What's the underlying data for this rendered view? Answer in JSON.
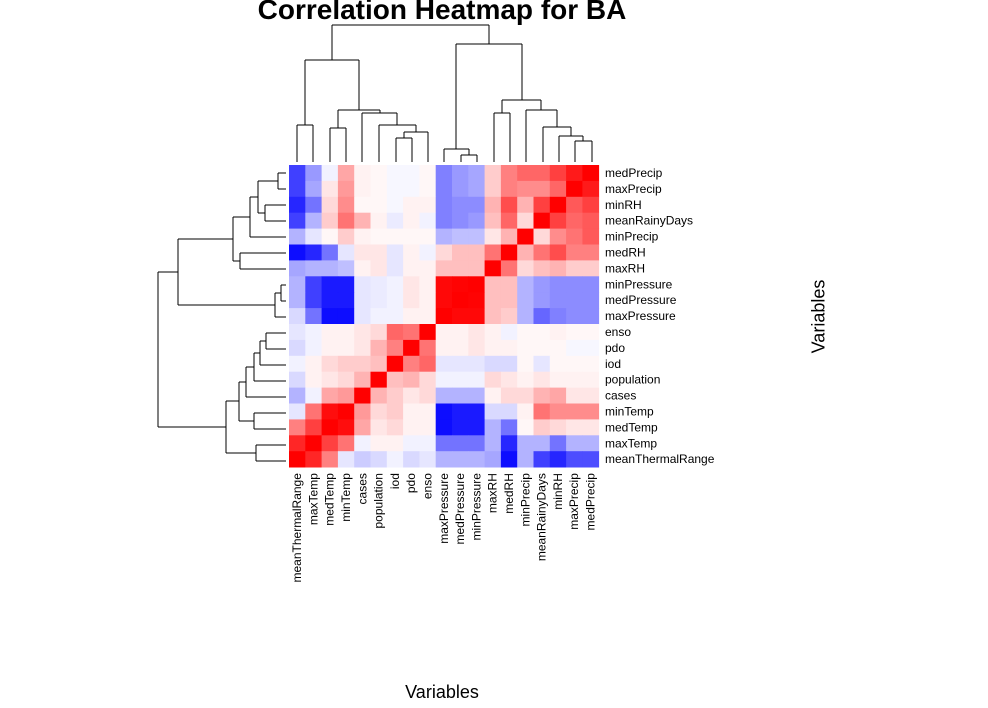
{
  "chart_data": {
    "type": "heatmap",
    "title": "Correlation Heatmap for BA",
    "xlabel": "Variables",
    "ylabel": "Variables",
    "column_labels": [
      "meanThermalRange",
      "maxTemp",
      "medTemp",
      "minTemp",
      "cases",
      "population",
      "iod",
      "pdo",
      "enso",
      "maxPressure",
      "medPressure",
      "minPressure",
      "maxRH",
      "medRH",
      "minPrecip",
      "meanRainyDays",
      "minRH",
      "maxPrecip",
      "medPrecip"
    ],
    "row_labels": [
      "medPrecip",
      "maxPrecip",
      "minRH",
      "meanRainyDays",
      "minPrecip",
      "medRH",
      "maxRH",
      "minPressure",
      "medPressure",
      "maxPressure",
      "enso",
      "pdo",
      "iod",
      "population",
      "cases",
      "minTemp",
      "medTemp",
      "maxTemp",
      "meanThermalRange"
    ],
    "color_scale": {
      "min": -1,
      "max": 1,
      "low_color": "#0000ff",
      "mid_color": "#ffffff",
      "high_color": "#ff0000"
    },
    "values": [
      [
        -0.75,
        -0.4,
        -0.05,
        0.35,
        0.05,
        0.03,
        -0.03,
        -0.03,
        0.03,
        -0.5,
        -0.4,
        -0.35,
        0.2,
        0.5,
        0.6,
        0.6,
        0.75,
        0.9,
        1
      ],
      [
        -0.75,
        -0.35,
        0.1,
        0.4,
        0.05,
        0.03,
        -0.03,
        -0.03,
        0.03,
        -0.5,
        -0.4,
        -0.35,
        0.2,
        0.5,
        0.45,
        0.45,
        0.6,
        1,
        0.9
      ],
      [
        -0.85,
        -0.55,
        0.15,
        0.45,
        0.03,
        0.03,
        -0.03,
        0.05,
        0.05,
        -0.5,
        -0.45,
        -0.45,
        0.3,
        0.7,
        0.3,
        0.75,
        1,
        0.65,
        0.75
      ],
      [
        -0.75,
        -0.3,
        0.2,
        0.55,
        0.3,
        0.05,
        -0.08,
        0.05,
        -0.05,
        -0.5,
        -0.45,
        -0.4,
        0.25,
        0.6,
        0.15,
        1,
        0.75,
        0.6,
        0.65
      ],
      [
        -0.3,
        -0.1,
        0.03,
        0.2,
        0.05,
        0.03,
        0.03,
        0.03,
        0.03,
        -0.3,
        -0.25,
        -0.25,
        0.1,
        0.3,
        1,
        0.15,
        0.45,
        0.55,
        0.65
      ],
      [
        -0.95,
        -0.85,
        -0.55,
        -0.1,
        0.1,
        0.1,
        -0.1,
        0.05,
        -0.05,
        0.15,
        0.25,
        0.25,
        0.55,
        1,
        0.3,
        0.55,
        0.7,
        0.5,
        0.5
      ],
      [
        -0.35,
        -0.3,
        -0.3,
        -0.25,
        0.05,
        0.1,
        -0.1,
        0.05,
        0.05,
        0.25,
        0.25,
        0.25,
        1,
        0.55,
        0.15,
        0.25,
        0.3,
        0.2,
        0.2
      ],
      [
        -0.3,
        -0.75,
        -0.9,
        -0.9,
        -0.1,
        -0.08,
        -0.05,
        0.1,
        0.05,
        0.97,
        0.99,
        1,
        0.25,
        0.25,
        -0.3,
        -0.4,
        -0.45,
        -0.45,
        -0.45
      ],
      [
        -0.3,
        -0.75,
        -0.9,
        -0.9,
        -0.1,
        -0.08,
        -0.05,
        0.1,
        0.05,
        0.97,
        1,
        0.99,
        0.25,
        0.25,
        -0.3,
        -0.4,
        -0.45,
        -0.45,
        -0.45
      ],
      [
        -0.15,
        -0.55,
        -0.95,
        -0.95,
        -0.1,
        -0.05,
        -0.05,
        0.05,
        0.05,
        1,
        0.97,
        0.97,
        0.25,
        0.2,
        -0.3,
        -0.6,
        -0.5,
        -0.45,
        -0.45
      ],
      [
        -0.1,
        -0.05,
        0.05,
        0.05,
        0.1,
        0.15,
        0.6,
        0.55,
        1,
        0.05,
        0.05,
        0.1,
        0.05,
        -0.05,
        0.03,
        0.03,
        0.05,
        0.03,
        0.03
      ],
      [
        -0.15,
        -0.05,
        0.05,
        0.05,
        0.1,
        0.3,
        0.5,
        1,
        0.55,
        0.05,
        0.05,
        0.1,
        0.05,
        0.05,
        0.03,
        0.03,
        0.03,
        -0.03,
        -0.03
      ],
      [
        -0.05,
        0.05,
        0.15,
        0.2,
        0.2,
        0.25,
        1,
        0.5,
        0.6,
        -0.1,
        -0.1,
        -0.1,
        -0.15,
        -0.15,
        0.03,
        -0.1,
        0.03,
        0.03,
        0.03
      ],
      [
        -0.15,
        0.05,
        0.1,
        0.15,
        0.3,
        1,
        0.25,
        0.3,
        0.15,
        -0.05,
        -0.05,
        -0.05,
        0.15,
        0.1,
        0.05,
        0.1,
        0.05,
        0.05,
        0.05
      ],
      [
        -0.3,
        -0.05,
        0.35,
        0.4,
        1,
        0.3,
        0.2,
        0.1,
        0.15,
        -0.3,
        -0.3,
        -0.3,
        0.05,
        0.15,
        0.15,
        0.3,
        0.35,
        0.1,
        0.1
      ],
      [
        -0.1,
        0.55,
        0.95,
        1,
        0.4,
        0.15,
        0.2,
        0.05,
        0.05,
        -0.95,
        -0.9,
        -0.9,
        -0.15,
        -0.15,
        0.05,
        0.55,
        0.45,
        0.45,
        0.45
      ],
      [
        0.5,
        0.75,
        1,
        0.95,
        0.35,
        0.1,
        0.15,
        0.05,
        0.05,
        -0.95,
        -0.9,
        -0.9,
        -0.3,
        -0.55,
        0.03,
        0.2,
        0.15,
        0.1,
        0.1
      ],
      [
        0.85,
        1,
        0.75,
        0.55,
        -0.05,
        0.05,
        0.05,
        -0.05,
        -0.05,
        -0.55,
        -0.55,
        -0.55,
        -0.3,
        -0.85,
        -0.3,
        -0.3,
        -0.55,
        -0.3,
        -0.3
      ],
      [
        1,
        0.85,
        0.5,
        -0.1,
        -0.2,
        -0.15,
        -0.05,
        -0.15,
        -0.1,
        -0.3,
        -0.3,
        -0.3,
        -0.35,
        -0.95,
        -0.3,
        -0.75,
        -0.85,
        -0.7,
        -0.7
      ]
    ]
  }
}
